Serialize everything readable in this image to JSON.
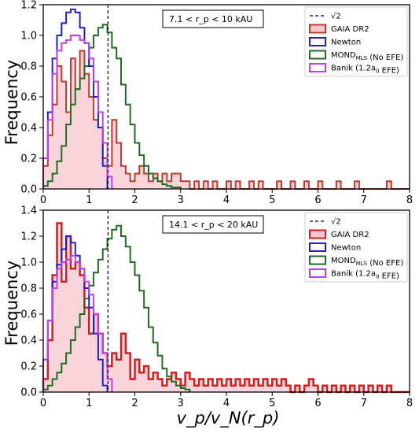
{
  "figure": {
    "xlabel": "v_p/v_N(r_p)",
    "ylabel": "Frequency"
  },
  "chart_data": [
    {
      "type": "histogram",
      "panel": "top",
      "annotation": "7.1 < r_p < 10 kAU",
      "xlim": [
        0,
        8
      ],
      "ylim": [
        0,
        1.2
      ],
      "xticks": [
        0,
        1,
        2,
        3,
        4,
        5,
        6,
        7,
        8
      ],
      "yticks": [
        0.0,
        0.2,
        0.4,
        0.6,
        0.8,
        1.0,
        1.2
      ],
      "vline": {
        "x": 1.414,
        "label": "√2",
        "style": "dashed",
        "color": "#000000"
      },
      "legend_position": "top-right",
      "legend": [
        "√2",
        "GAIA DR2",
        "Newton",
        "MOND_MLS (No EFE)",
        "Banik (1.2a_0 EFE)"
      ],
      "series": [
        {
          "name": "GAIA DR2",
          "color": "#c0392b",
          "fill": "#f7c6cf",
          "bin_start": 0.0,
          "bin_width": 0.1,
          "stroke_width": 2,
          "values": [
            0.15,
            0.35,
            0.55,
            0.8,
            0.7,
            0.5,
            0.85,
            0.65,
            0.9,
            0.75,
            0.6,
            0.45,
            0.4,
            0.2,
            0.15,
            0.45,
            0.3,
            0.15,
            0.1,
            0.05,
            0.1,
            0.15,
            0.1,
            0.05,
            0.1,
            0.05,
            0.1,
            0.05,
            0.1,
            0.1,
            0.05,
            0.05,
            0.0,
            0.05,
            0.0,
            0.05,
            0.0,
            0.05,
            0.0,
            0.0,
            0.05,
            0.0,
            0.05,
            0.0,
            0.0,
            0.05,
            0.0,
            0.05,
            0.0,
            0.0,
            0.0,
            0.05,
            0.0,
            0.0,
            0.05,
            0.0,
            0.0,
            0.05,
            0.0,
            0.0,
            0.05,
            0.0,
            0.0,
            0.0,
            0.05,
            0.0,
            0.0,
            0.0,
            0.05,
            0.0,
            0.0,
            0.0,
            0.0,
            0.0,
            0.0,
            0.05,
            0.0,
            0.0,
            0.0,
            0.0
          ]
        },
        {
          "name": "Newton",
          "color": "#1f1fd1",
          "fill": "none",
          "bin_start": 0.0,
          "bin_width": 0.1,
          "stroke_width": 2,
          "values": [
            0.2,
            0.5,
            0.85,
            1.0,
            1.08,
            1.15,
            1.17,
            1.15,
            1.05,
            0.95,
            0.8,
            0.6,
            0.4,
            0.15
          ]
        },
        {
          "name": "MOND_MLS (No EFE)",
          "color": "#1f6e1f",
          "fill": "none",
          "bin_start": 0.0,
          "bin_width": 0.1,
          "stroke_width": 2,
          "values": [
            0.02,
            0.05,
            0.1,
            0.18,
            0.28,
            0.42,
            0.55,
            0.65,
            0.72,
            0.8,
            0.92,
            1.0,
            1.05,
            1.07,
            1.02,
            0.92,
            0.85,
            0.68,
            0.55,
            0.42,
            0.3,
            0.22,
            0.15,
            0.1,
            0.07,
            0.05,
            0.03,
            0.02,
            0.01,
            0.01
          ]
        },
        {
          "name": "Banik (1.2a_0 EFE)",
          "color": "#c43cf0",
          "fill": "none",
          "bin_start": 0.0,
          "bin_width": 0.1,
          "stroke_width": 2,
          "values": [
            0.2,
            0.45,
            0.75,
            0.9,
            0.95,
            0.97,
            1.0,
            1.0,
            0.97,
            0.95,
            0.85,
            0.7,
            0.5,
            0.3,
            0.08
          ]
        }
      ]
    },
    {
      "type": "histogram",
      "panel": "bottom",
      "annotation": "14.1 < r_p < 20 kAU",
      "xlim": [
        0,
        8
      ],
      "ylim": [
        0,
        1.4
      ],
      "xticks": [
        0,
        1,
        2,
        3,
        4,
        5,
        6,
        7,
        8
      ],
      "yticks": [
        0.0,
        0.2,
        0.4,
        0.6,
        0.8,
        1.0,
        1.2,
        1.4
      ],
      "vline": {
        "x": 1.414,
        "label": "√2",
        "style": "dashed",
        "color": "#000000"
      },
      "legend_position": "top-right",
      "legend": [
        "√2",
        "GAIA DR2",
        "Newton",
        "MOND_MLS (No EFE)",
        "Banik (1.2a_0 EFE)"
      ],
      "series": [
        {
          "name": "GAIA DR2",
          "color": "#d61c1c",
          "fill": "#f7c6cf",
          "bin_start": 0.0,
          "bin_width": 0.1,
          "stroke_width": 2.5,
          "values": [
            0.1,
            0.4,
            0.9,
            1.3,
            0.85,
            1.2,
            0.95,
            1.0,
            0.9,
            0.65,
            0.45,
            0.6,
            0.45,
            0.3,
            0.2,
            0.3,
            0.25,
            0.45,
            0.3,
            0.1,
            0.25,
            0.15,
            0.2,
            0.1,
            0.15,
            0.1,
            0.05,
            0.1,
            0.15,
            0.1,
            0.05,
            0.15,
            0.1,
            0.05,
            0.1,
            0.05,
            0.1,
            0.05,
            0.1,
            0.05,
            0.1,
            0.05,
            0.1,
            0.05,
            0.1,
            0.05,
            0.1,
            0.05,
            0.1,
            0.05,
            0.1,
            0.05,
            0.1,
            0.05,
            0.0,
            0.05,
            0.0,
            0.05,
            0.1,
            0.05,
            0.0,
            0.05,
            0.0,
            0.05,
            0.0,
            0.05,
            0.0,
            0.05,
            0.0,
            0.05,
            0.0,
            0.05,
            0.0,
            0.05,
            0.0,
            0.05,
            0.0,
            0.0,
            0.0,
            0.0
          ]
        },
        {
          "name": "Newton",
          "color": "#1f1fd1",
          "fill": "none",
          "bin_start": 0.0,
          "bin_width": 0.1,
          "stroke_width": 2,
          "values": [
            0.25,
            0.55,
            0.85,
            0.98,
            1.1,
            1.2,
            1.15,
            1.05,
            0.95,
            0.8,
            0.65,
            0.45,
            0.25,
            0.05
          ]
        },
        {
          "name": "MOND_MLS (No EFE)",
          "color": "#1f6e1f",
          "fill": "none",
          "bin_start": 0.0,
          "bin_width": 0.1,
          "stroke_width": 2,
          "values": [
            0.02,
            0.05,
            0.1,
            0.15,
            0.22,
            0.3,
            0.4,
            0.5,
            0.6,
            0.72,
            0.82,
            0.92,
            1.02,
            1.1,
            1.18,
            1.25,
            1.28,
            1.2,
            1.12,
            1.0,
            0.9,
            0.78,
            0.65,
            0.5,
            0.38,
            0.28,
            0.18,
            0.12,
            0.08,
            0.05,
            0.03,
            0.02
          ]
        },
        {
          "name": "Banik (1.2a_0 EFE)",
          "color": "#c43cf0",
          "fill": "none",
          "bin_start": 0.0,
          "bin_width": 0.1,
          "stroke_width": 2,
          "values": [
            0.25,
            0.55,
            0.8,
            0.95,
            1.0,
            1.02,
            1.05,
            1.0,
            0.95,
            0.85,
            0.75,
            0.6,
            0.45,
            0.3,
            0.1
          ]
        }
      ]
    }
  ]
}
